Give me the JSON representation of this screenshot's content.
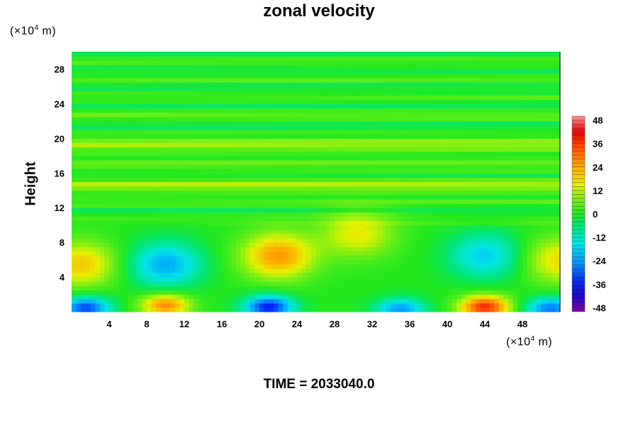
{
  "chart_data": {
    "type": "heatmap",
    "title": "zonal velocity",
    "ylabel": "Height",
    "x_unit": "(×10⁴ m)",
    "y_unit": "(×10⁴ m)",
    "xlim": [
      0,
      52
    ],
    "ylim": [
      0,
      30
    ],
    "x_ticks": [
      "4",
      "8",
      "12",
      "16",
      "20",
      "24",
      "28",
      "32",
      "36",
      "40",
      "44",
      "48"
    ],
    "y_ticks": [
      "4",
      "8",
      "12",
      "16",
      "20",
      "24",
      "28"
    ],
    "colorbar": {
      "range": [
        -50,
        50
      ],
      "ticks": [
        "48",
        "36",
        "24",
        "12",
        "0",
        "-12",
        "-24",
        "-36",
        "-48"
      ]
    },
    "features": [
      {
        "x": 44,
        "y": 0.6,
        "value": 38
      },
      {
        "x": 10,
        "y": 0.8,
        "value": 28
      },
      {
        "x": 21,
        "y": 0.6,
        "value": -36
      },
      {
        "x": 1.5,
        "y": 0.5,
        "value": -32
      },
      {
        "x": 51,
        "y": 0.4,
        "value": -28
      },
      {
        "x": 35,
        "y": 0.3,
        "value": -24
      },
      {
        "x": 22,
        "y": 6.5,
        "value": 26
      },
      {
        "x": 10,
        "y": 5.5,
        "value": -22
      },
      {
        "x": 44,
        "y": 6.5,
        "value": -18
      },
      {
        "x": 1,
        "y": 5.5,
        "value": 20
      },
      {
        "x": 52,
        "y": 6,
        "value": 18
      },
      {
        "x": 30.5,
        "y": 9,
        "value": 16
      }
    ]
  },
  "footer": {
    "time_label": "TIME = 2033040.0"
  },
  "colors": {
    "plot_background": "#22e81e"
  }
}
